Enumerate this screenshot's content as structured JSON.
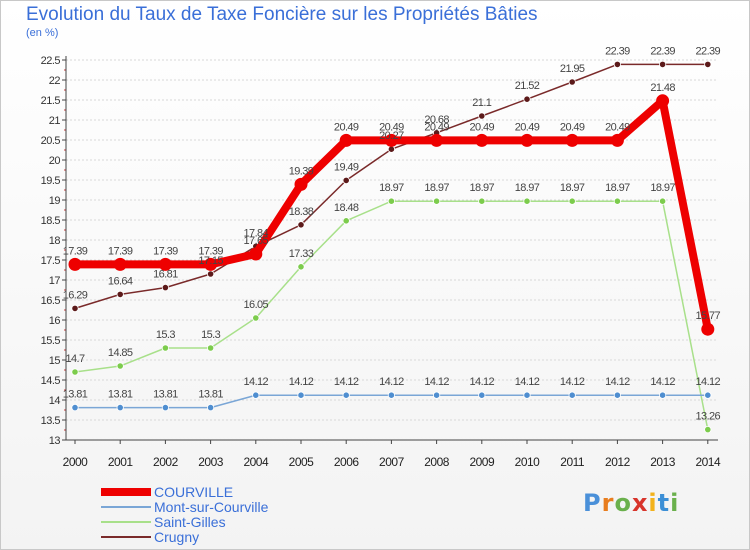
{
  "header": {
    "title": "Evolution du Taux de Taxe Foncière sur les Propriétés Bâties",
    "subtitle": "(en %)"
  },
  "logo": {
    "text": "Proxiti"
  },
  "chart_data": {
    "type": "line",
    "title": "Evolution du Taux de Taxe Foncière sur les Propriétés Bâties",
    "ylabel": "(en %)",
    "xlabel": "",
    "x": [
      "2000",
      "2001",
      "2002",
      "2003",
      "2004",
      "2005",
      "2006",
      "2007",
      "2008",
      "2009",
      "2010",
      "2011",
      "2012",
      "2013",
      "2014"
    ],
    "ylim": [
      13,
      22.5
    ],
    "ytick_step": 0.5,
    "yticks": [
      "13",
      "13.5",
      "14",
      "14.5",
      "15",
      "15.5",
      "16",
      "16.5",
      "17",
      "17.5",
      "18",
      "18.5",
      "19",
      "19.5",
      "20",
      "20.5",
      "21",
      "21.5",
      "22",
      "22.5"
    ],
    "legend_position": "bottom-left",
    "series": [
      {
        "name": "Crugny",
        "color": "#7a2a2a",
        "marker": "#5c1a1a",
        "values": [
          16.29,
          16.64,
          16.81,
          17.15,
          17.84,
          18.38,
          19.49,
          20.27,
          20.68,
          21.1,
          21.52,
          21.95,
          22.39,
          22.39,
          22.39
        ],
        "labels": [
          "16.29",
          "16.64",
          "16.81",
          "17.15",
          "17.84",
          "18.38",
          "19.49",
          "20.27",
          "20.68",
          "21.1",
          "21.52",
          "21.95",
          "22.39",
          "22.39",
          "22.39"
        ]
      },
      {
        "name": "Saint-Gilles",
        "color": "#a8e08a",
        "marker": "#7ccc4c",
        "values": [
          14.7,
          14.85,
          15.3,
          15.3,
          16.05,
          17.33,
          18.48,
          18.97,
          18.97,
          18.97,
          18.97,
          18.97,
          18.97,
          18.97,
          13.26
        ],
        "labels": [
          "14.7",
          "14.85",
          "15.3",
          "15.3",
          "16.05",
          "17.33",
          "18.48",
          "18.97",
          "18.97",
          "18.97",
          "18.97",
          "18.97",
          "18.97",
          "18.97",
          "13.26"
        ]
      },
      {
        "name": "Mont-sur-Courville",
        "color": "#7aa6d6",
        "marker": "#4f8ed0",
        "values": [
          13.81,
          13.81,
          13.81,
          13.81,
          14.12,
          14.12,
          14.12,
          14.12,
          14.12,
          14.12,
          14.12,
          14.12,
          14.12,
          14.12,
          14.12
        ],
        "labels": [
          "13.81",
          "13.81",
          "13.81",
          "13.81",
          "14.12",
          "14.12",
          "14.12",
          "14.12",
          "14.12",
          "14.12",
          "14.12",
          "14.12",
          "14.12",
          "14.12",
          "14.12"
        ]
      },
      {
        "name": "COURVILLE",
        "color": "#ee0000",
        "marker": "#ee0000",
        "values": [
          17.39,
          17.39,
          17.39,
          17.39,
          17.65,
          19.39,
          20.49,
          20.49,
          20.49,
          20.49,
          20.49,
          20.49,
          20.49,
          21.48,
          15.77
        ],
        "labels": [
          "17.39",
          "17.39",
          "17.39",
          "17.39",
          "17.65",
          "19.39",
          "20.49",
          "20.49",
          "20.49",
          "20.49",
          "20.49",
          "20.49",
          "20.49",
          "21.48",
          "15.77"
        ]
      }
    ],
    "legend": [
      "COURVILLE",
      "Mont-sur-Courville",
      "Saint-Gilles",
      "Crugny"
    ]
  }
}
